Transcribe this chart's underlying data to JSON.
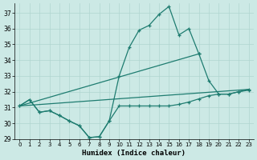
{
  "xlabel": "Humidex (Indice chaleur)",
  "xlim": [
    -0.5,
    23.5
  ],
  "ylim": [
    29,
    37.6
  ],
  "yticks": [
    29,
    30,
    31,
    32,
    33,
    34,
    35,
    36,
    37
  ],
  "xticks": [
    0,
    1,
    2,
    3,
    4,
    5,
    6,
    7,
    8,
    9,
    10,
    11,
    12,
    13,
    14,
    15,
    16,
    17,
    18,
    19,
    20,
    21,
    22,
    23
  ],
  "bg_color": "#cce9e5",
  "line_color": "#1e7c70",
  "grid_color": "#b0d5d0",
  "line1": {
    "x": [
      0,
      1,
      2,
      3,
      4,
      5,
      6,
      7,
      8,
      9,
      10,
      11,
      12,
      13,
      14,
      15,
      16,
      17,
      18,
      19,
      20,
      21,
      22,
      23
    ],
    "y": [
      31.1,
      31.5,
      30.7,
      30.8,
      30.5,
      30.15,
      29.85,
      29.1,
      29.15,
      30.15,
      31.1,
      31.1,
      31.1,
      31.1,
      31.1,
      31.1,
      31.2,
      31.35,
      31.55,
      31.75,
      31.85,
      31.85,
      32.0,
      32.1
    ]
  },
  "line2": {
    "x": [
      0,
      1,
      2,
      3,
      4,
      5,
      6,
      7,
      8,
      9,
      10,
      11,
      12,
      13,
      14,
      15,
      16,
      17,
      18
    ],
    "y": [
      31.1,
      31.5,
      30.7,
      30.8,
      30.5,
      30.15,
      29.85,
      29.1,
      29.15,
      30.15,
      33.0,
      34.8,
      35.9,
      36.2,
      36.9,
      37.4,
      35.6,
      36.0,
      34.4
    ]
  },
  "line3": {
    "x": [
      0,
      18,
      19,
      20,
      21,
      22,
      23
    ],
    "y": [
      31.1,
      34.4,
      32.7,
      31.85,
      31.85,
      32.0,
      32.15
    ]
  },
  "line4": {
    "x": [
      0,
      18,
      19,
      20,
      21,
      22,
      23
    ],
    "y": [
      31.1,
      34.4,
      32.7,
      31.85,
      31.85,
      32.0,
      32.15
    ]
  },
  "diag1": {
    "x": [
      0,
      23
    ],
    "y": [
      31.1,
      32.15
    ]
  },
  "diag2": {
    "x": [
      0,
      18
    ],
    "y": [
      31.1,
      34.4
    ]
  }
}
